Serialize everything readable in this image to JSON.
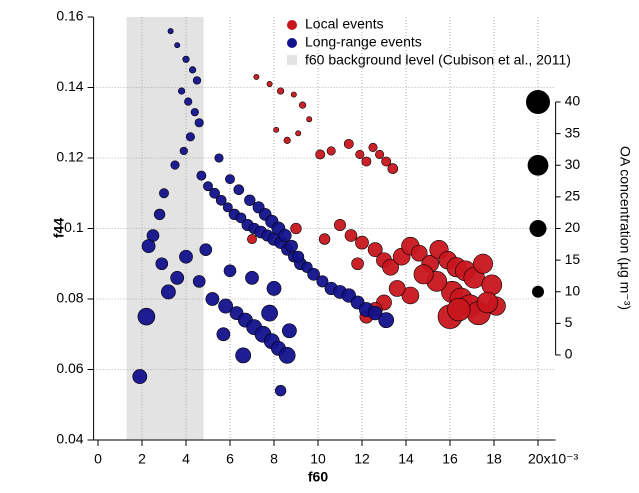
{
  "chart_data": {
    "type": "scatter",
    "xlabel": "f60",
    "ylabel": "f44",
    "y2label": "OA concentration (µg m⁻³)",
    "xlim": [
      -0.2,
      20.8
    ],
    "ylim": [
      0.04,
      0.16
    ],
    "y2lim": [
      0,
      40
    ],
    "xticks": [
      0,
      2,
      4,
      6,
      8,
      10,
      12,
      14,
      16,
      18,
      {
        "value": 20,
        "label": "20x10⁻³"
      }
    ],
    "yticks": [
      0.04,
      0.06,
      0.08,
      0.1,
      0.12,
      0.14,
      0.16
    ],
    "y2ticks": [
      0,
      5,
      10,
      15,
      20,
      25,
      30,
      35,
      40
    ],
    "size_legend": [
      0,
      10,
      20,
      30,
      40
    ],
    "grid": true,
    "background_band": {
      "name": "f60 background level (Cubison et al., 2011)",
      "color": "#e3e3e3",
      "range": [
        1.3,
        4.8
      ]
    },
    "series": [
      {
        "name": "Local events",
        "color": "#c8161d",
        "x": [
          7.2,
          7.8,
          8.3,
          8.9,
          9.3,
          9.6,
          8.1,
          8.6,
          9.1,
          10.1,
          10.6,
          11.4,
          11.9,
          12.2,
          12.5,
          13.1,
          13.4,
          12.8,
          11.0,
          11.5,
          12.0,
          12.6,
          13.0,
          13.3,
          13.8,
          14.2,
          14.6,
          15.1,
          15.5,
          15.9,
          16.3,
          16.7,
          17.1,
          17.5,
          17.9,
          18.1,
          16.1,
          16.5,
          16.9,
          17.3,
          17.7,
          15.4,
          14.8,
          14.2,
          13.6,
          13.0,
          12.6,
          12.2,
          16.0,
          16.4,
          7.0,
          9.0,
          10.3,
          11.8
        ],
        "y": [
          0.143,
          0.141,
          0.139,
          0.138,
          0.135,
          0.131,
          0.128,
          0.125,
          0.127,
          0.121,
          0.122,
          0.124,
          0.121,
          0.119,
          0.123,
          0.119,
          0.117,
          0.121,
          0.101,
          0.098,
          0.096,
          0.094,
          0.091,
          0.089,
          0.092,
          0.095,
          0.093,
          0.09,
          0.094,
          0.091,
          0.089,
          0.088,
          0.086,
          0.09,
          0.084,
          0.078,
          0.082,
          0.08,
          0.078,
          0.076,
          0.079,
          0.085,
          0.087,
          0.081,
          0.083,
          0.079,
          0.077,
          0.075,
          0.075,
          0.077,
          0.097,
          0.1,
          0.097,
          0.09
        ],
        "sizes": [
          2,
          2,
          3,
          2,
          3,
          2,
          2,
          3,
          2,
          6,
          5,
          6,
          5,
          6,
          5,
          6,
          7,
          5,
          9,
          10,
          12,
          14,
          16,
          18,
          20,
          22,
          18,
          20,
          24,
          22,
          26,
          28,
          30,
          26,
          28,
          24,
          32,
          34,
          36,
          38,
          30,
          28,
          26,
          20,
          18,
          16,
          14,
          12,
          40,
          36,
          6,
          8,
          8,
          10
        ]
      },
      {
        "name": "Long-range events",
        "color": "#12128c",
        "x": [
          3.3,
          3.6,
          4.0,
          4.3,
          4.5,
          3.8,
          4.1,
          4.4,
          4.6,
          4.2,
          3.9,
          3.5,
          4.7,
          5.0,
          5.3,
          5.6,
          5.9,
          6.2,
          6.5,
          6.8,
          7.1,
          7.4,
          7.7,
          8.0,
          8.3,
          8.6,
          8.9,
          9.2,
          5.5,
          6.0,
          6.4,
          6.9,
          7.3,
          7.6,
          7.9,
          8.2,
          8.5,
          8.8,
          9.1,
          9.5,
          9.8,
          10.2,
          10.6,
          11.0,
          11.4,
          11.8,
          12.2,
          12.6,
          13.1,
          3.0,
          2.8,
          2.5,
          2.3,
          2.9,
          3.6,
          3.2,
          2.2,
          1.9,
          4.0,
          4.6,
          5.2,
          5.8,
          6.3,
          6.7,
          7.1,
          7.5,
          7.9,
          8.2,
          8.6,
          6.0,
          7.0,
          8.0,
          8.3,
          4.9,
          5.7,
          6.6,
          7.8,
          8.7
        ],
        "y": [
          0.156,
          0.152,
          0.148,
          0.145,
          0.142,
          0.139,
          0.136,
          0.133,
          0.13,
          0.126,
          0.122,
          0.118,
          0.115,
          0.112,
          0.11,
          0.108,
          0.106,
          0.104,
          0.103,
          0.101,
          0.1,
          0.099,
          0.098,
          0.097,
          0.096,
          0.094,
          0.092,
          0.09,
          0.12,
          0.114,
          0.111,
          0.108,
          0.106,
          0.104,
          0.102,
          0.1,
          0.098,
          0.095,
          0.092,
          0.089,
          0.087,
          0.085,
          0.083,
          0.082,
          0.081,
          0.079,
          0.077,
          0.076,
          0.074,
          0.11,
          0.104,
          0.098,
          0.095,
          0.09,
          0.086,
          0.082,
          0.075,
          0.058,
          0.092,
          0.085,
          0.08,
          0.078,
          0.076,
          0.074,
          0.072,
          0.07,
          0.068,
          0.066,
          0.064,
          0.088,
          0.086,
          0.083,
          0.054,
          0.094,
          0.07,
          0.064,
          0.076,
          0.071
        ],
        "sizes": [
          2,
          2,
          3,
          3,
          4,
          3,
          4,
          4,
          5,
          5,
          4,
          5,
          6,
          6,
          7,
          7,
          6,
          8,
          7,
          9,
          8,
          10,
          9,
          11,
          10,
          9,
          8,
          10,
          5,
          6,
          7,
          8,
          9,
          10,
          11,
          12,
          11,
          10,
          9,
          8,
          10,
          9,
          11,
          12,
          13,
          12,
          14,
          13,
          16,
          6,
          8,
          10,
          12,
          10,
          12,
          14,
          20,
          14,
          12,
          10,
          12,
          14,
          12,
          14,
          16,
          18,
          16,
          14,
          18,
          10,
          12,
          14,
          8,
          10,
          12,
          16,
          18,
          14
        ]
      }
    ]
  }
}
